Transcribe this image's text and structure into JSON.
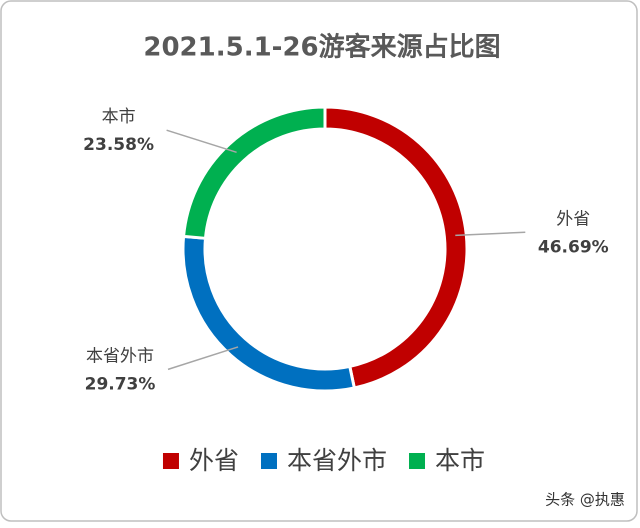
{
  "chart_data": {
    "type": "donut",
    "title": "2021.5.1-26游客来源占比图",
    "categories": [
      "外省",
      "本省外市",
      "本市"
    ],
    "values": [
      46.69,
      29.73,
      23.58
    ],
    "value_labels": [
      "46.69%",
      "29.73%",
      "23.58%"
    ],
    "colors": [
      "#c00000",
      "#0070c0",
      "#00b050"
    ],
    "legend": "bottom"
  },
  "watermark": "头条 @执惠"
}
